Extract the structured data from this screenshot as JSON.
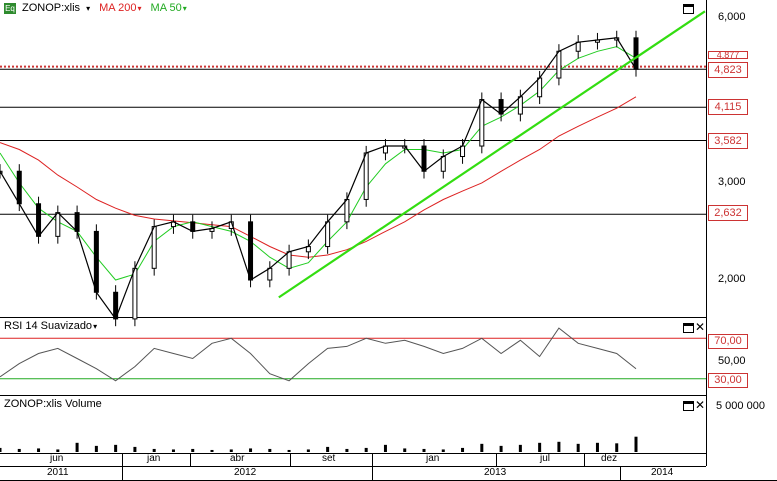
{
  "panes": {
    "price": {
      "symbol": "ZONOP:xlis",
      "icon": "eq-icon",
      "ma200_label": "MA 200",
      "ma50_label": "MA 50",
      "ma200_color": "#dd2222",
      "ma50_color": "#22cc22",
      "trendline_color": "#33dd11"
    },
    "rsi": {
      "title": "RSI 14 Suavizado",
      "upper": "70,00",
      "middle": "50,00",
      "lower": "30,00"
    },
    "volume": {
      "title": "ZONOP:xlis Volume",
      "scale_label": "5 000 000"
    }
  },
  "price_axis": {
    "ticks": [
      "6,000",
      "3,000",
      "2,000"
    ],
    "levels": [
      "4,823",
      "4,115",
      "3,582",
      "2,632"
    ],
    "last_price": "4,823",
    "obscured_level": "4,877"
  },
  "time_axis": {
    "months": [
      "jun",
      "jan",
      "abr",
      "set",
      "jan",
      "jul",
      "dez"
    ],
    "years": [
      "2011",
      "2012",
      "2013",
      "2014"
    ]
  },
  "chart_data": {
    "type": "line",
    "y_scale": "log",
    "ylim": [
      1.62,
      6.3
    ],
    "price": {
      "name": "ZONOP:xlis",
      "x": [
        "2011-03",
        "2011-04",
        "2011-05",
        "2011-06",
        "2011-07",
        "2011-08",
        "2011-09",
        "2011-10",
        "2011-11",
        "2011-12",
        "2012-01",
        "2012-02",
        "2012-03",
        "2012-04",
        "2012-05",
        "2012-06",
        "2012-07",
        "2012-08",
        "2012-09",
        "2012-10",
        "2012-11",
        "2012-12",
        "2013-01",
        "2013-02",
        "2013-03",
        "2013-04",
        "2013-05",
        "2013-06",
        "2013-07",
        "2013-08",
        "2013-09",
        "2013-10",
        "2013-11",
        "2013-12"
      ],
      "values": [
        3.15,
        2.75,
        2.4,
        2.65,
        2.45,
        1.9,
        1.7,
        2.1,
        2.5,
        2.55,
        2.45,
        2.48,
        2.55,
        2.0,
        2.1,
        2.25,
        2.3,
        2.55,
        2.8,
        3.4,
        3.5,
        3.5,
        3.15,
        3.35,
        3.5,
        4.25,
        4.0,
        4.3,
        4.65,
        5.2,
        5.4,
        5.45,
        5.5,
        4.823
      ]
    },
    "ma50": {
      "name": "MA 50",
      "values": [
        3.4,
        3.0,
        2.7,
        2.55,
        2.45,
        2.2,
        2.0,
        2.05,
        2.35,
        2.5,
        2.55,
        2.5,
        2.45,
        2.35,
        2.2,
        2.1,
        2.15,
        2.35,
        2.55,
        2.95,
        3.25,
        3.45,
        3.45,
        3.4,
        3.45,
        3.8,
        3.95,
        4.15,
        4.4,
        4.8,
        5.05,
        5.2,
        5.3,
        5.05
      ]
    },
    "ma200": {
      "name": "MA 200",
      "values": [
        3.55,
        3.45,
        3.3,
        3.1,
        2.95,
        2.8,
        2.7,
        2.62,
        2.58,
        2.56,
        2.54,
        2.52,
        2.5,
        2.4,
        2.3,
        2.22,
        2.2,
        2.22,
        2.27,
        2.35,
        2.45,
        2.55,
        2.68,
        2.8,
        2.9,
        3.0,
        3.15,
        3.3,
        3.45,
        3.65,
        3.8,
        3.95,
        4.1,
        4.3
      ]
    },
    "trendline": {
      "x": [
        "2012-05-15",
        "2013-12-31"
      ],
      "values": [
        1.86,
        5.7
      ]
    },
    "horizontal_levels": [
      4.877,
      4.823,
      4.115,
      3.582,
      2.632
    ],
    "rsi": {
      "name": "RSI 14 Suavizado",
      "ylim": [
        14,
        90
      ],
      "bands": [
        70,
        50,
        30
      ],
      "values": [
        32,
        45,
        55,
        60,
        50,
        40,
        28,
        42,
        60,
        55,
        50,
        65,
        70,
        55,
        35,
        28,
        45,
        60,
        62,
        70,
        65,
        68,
        62,
        55,
        60,
        70,
        55,
        68,
        52,
        80,
        65,
        60,
        55,
        40
      ]
    },
    "volume": {
      "name": "ZONOP:xlis Volume",
      "values": [
        400000,
        300000,
        350000,
        250000,
        900000,
        600000,
        700000,
        500000,
        300000,
        250000,
        300000,
        200000,
        250000,
        350000,
        300000,
        200000,
        250000,
        500000,
        300000,
        400000,
        700000,
        350000,
        300000,
        250000,
        400000,
        800000,
        600000,
        700000,
        900000,
        1000000,
        800000,
        900000,
        850000,
        1500000
      ]
    }
  }
}
